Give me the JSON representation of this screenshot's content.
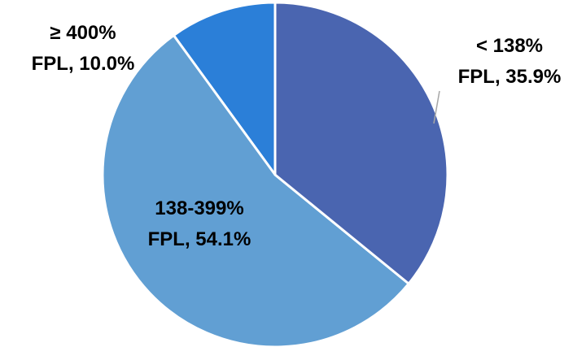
{
  "chart_data": {
    "type": "pie",
    "values": [
      35.9,
      54.1,
      10.0
    ],
    "labels": [
      "< 138% FPL, 35.9%",
      "138-399% FPL, 54.1%",
      "≥ 400% FPL, 10.0%"
    ],
    "colors": [
      "#4a65b0",
      "#619fd3",
      "#2b7fd8"
    ]
  }
}
